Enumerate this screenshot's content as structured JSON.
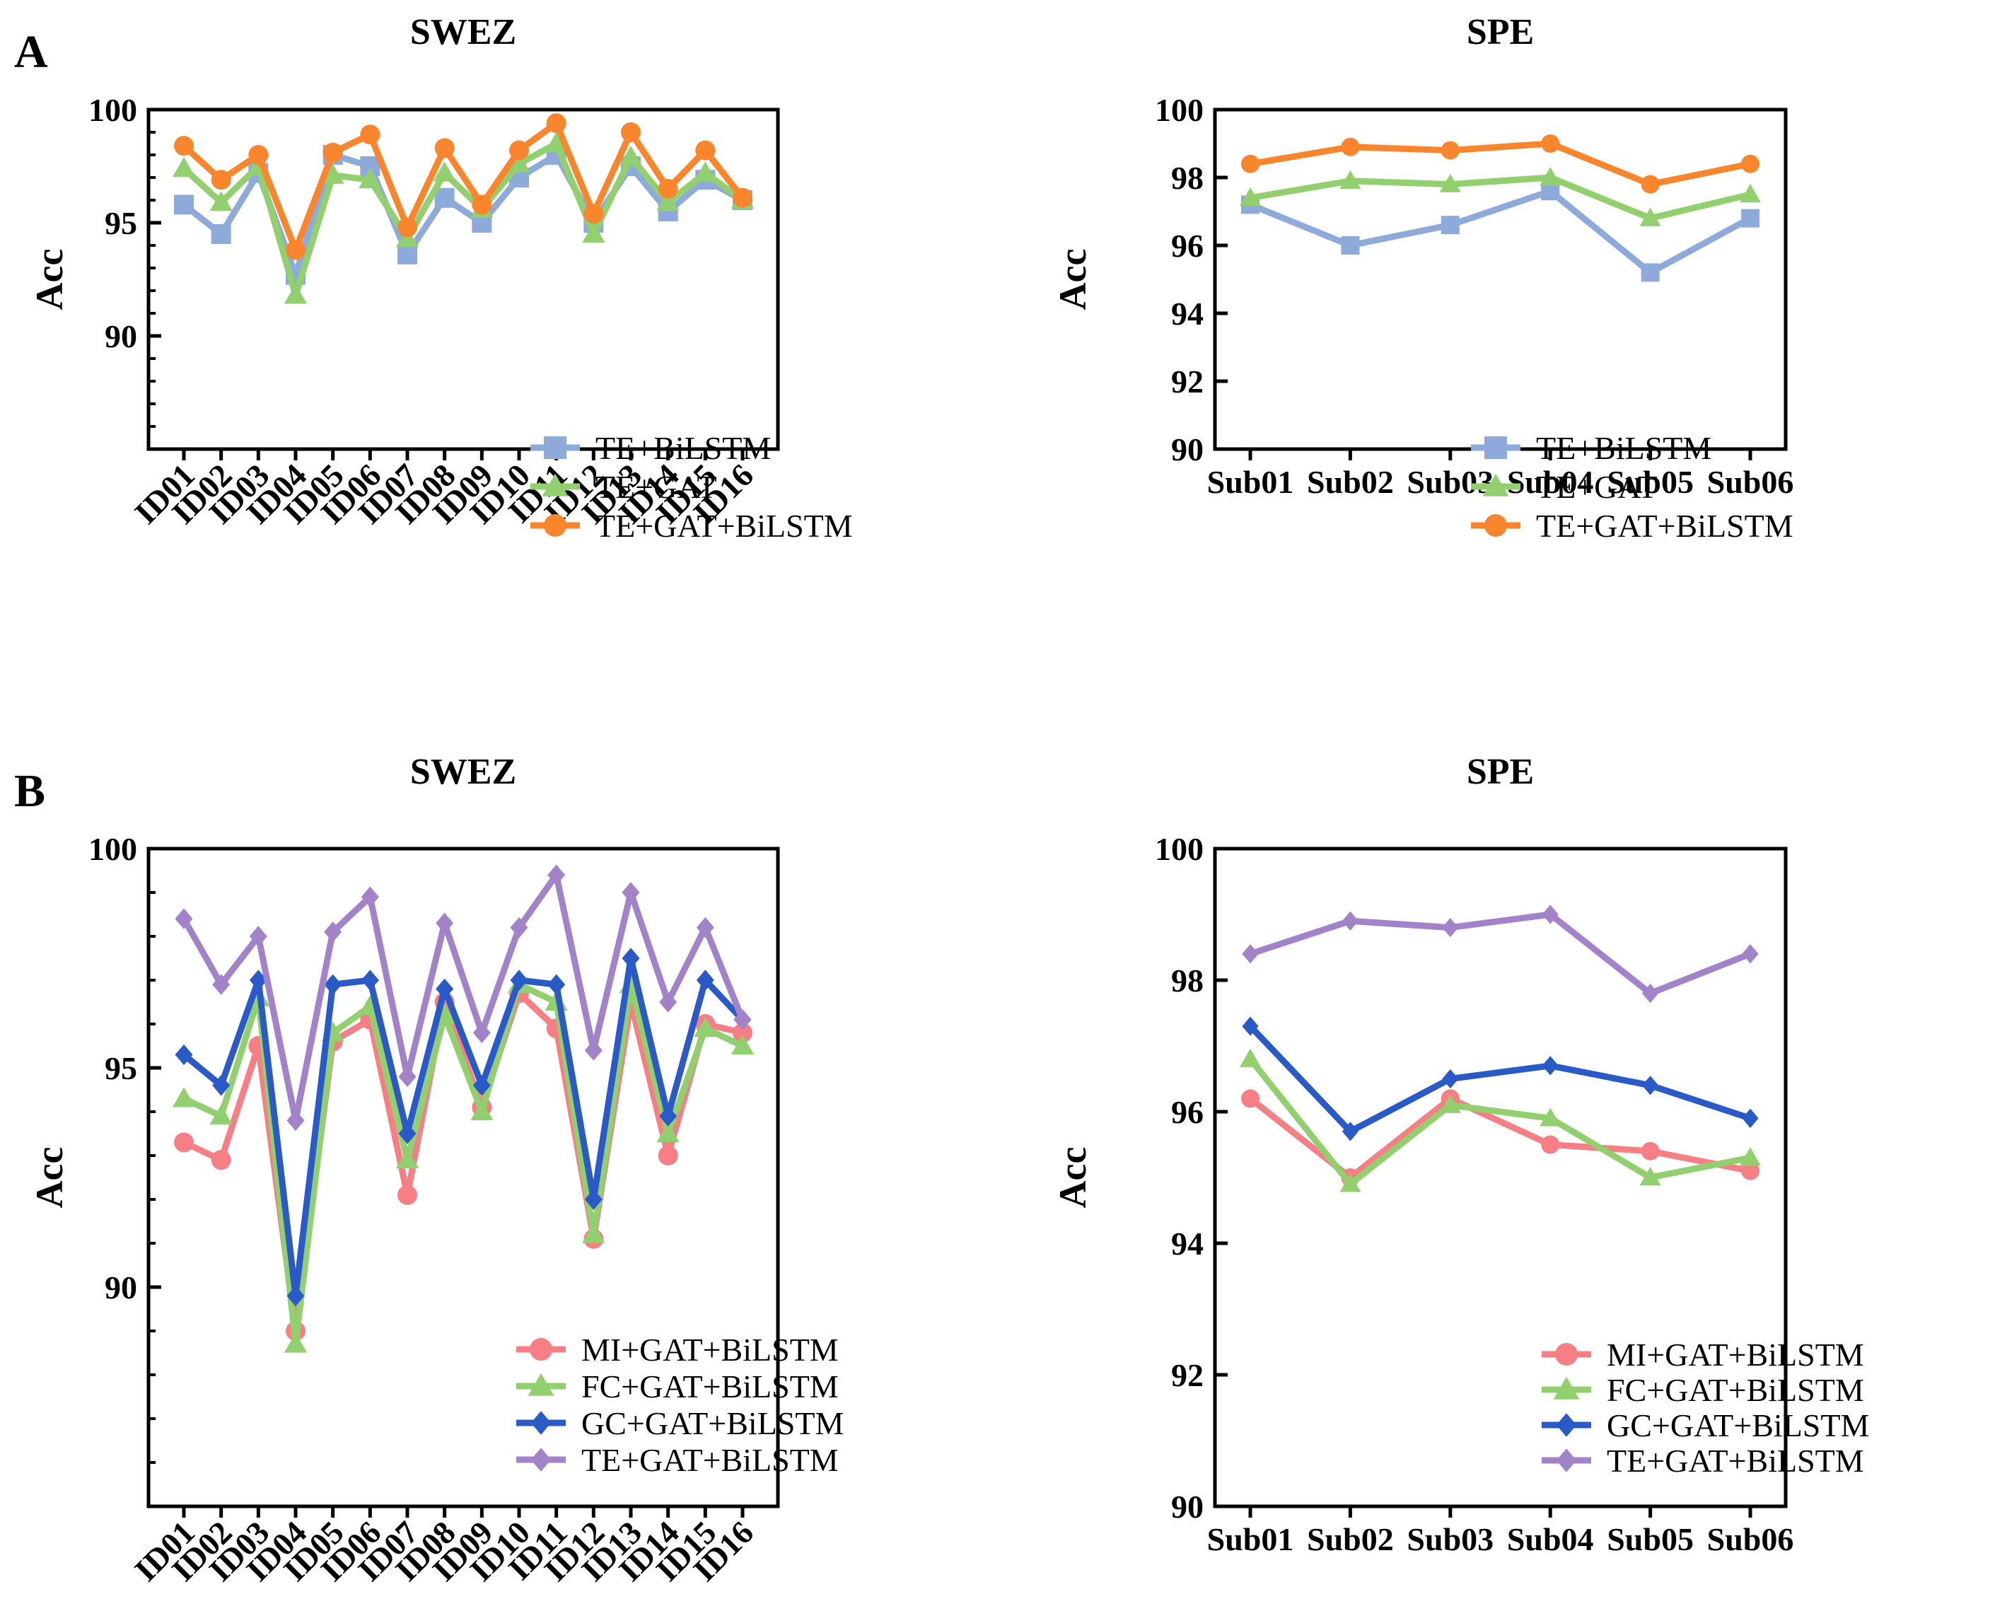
{
  "figure": {
    "panel_letters": [
      "A",
      "B"
    ]
  },
  "chart_data": [
    {
      "id": "A-left",
      "type": "line",
      "title": "SWEZ",
      "xlabel": "",
      "ylabel": "Acc",
      "ylim": [
        85,
        100
      ],
      "yticks": [
        90,
        95,
        100
      ],
      "ytick_labels": [
        "90",
        "95",
        "100"
      ],
      "minor_yticks": true,
      "x_rotated": true,
      "grid": false,
      "legend_position": "bottom-right",
      "categories": [
        "ID01",
        "ID02",
        "ID03",
        "ID04",
        "ID05",
        "ID06",
        "ID07",
        "ID08",
        "ID09",
        "ID10",
        "ID11",
        "ID12",
        "ID13",
        "ID14",
        "ID15",
        "ID16"
      ],
      "series": [
        {
          "name": "TE+BiLSTM",
          "color": "#8eaadb",
          "marker": "square",
          "values": [
            95.8,
            94.5,
            97.2,
            92.7,
            98.0,
            97.5,
            93.6,
            96.1,
            95.0,
            97.0,
            98.0,
            95.0,
            97.5,
            95.5,
            96.9,
            96.0
          ]
        },
        {
          "name": "TE+GAT",
          "color": "#92d06f",
          "marker": "triangle",
          "values": [
            97.4,
            95.9,
            97.5,
            91.8,
            97.1,
            96.9,
            94.3,
            97.2,
            95.6,
            97.6,
            98.5,
            94.5,
            97.9,
            95.9,
            97.2,
            96.0
          ]
        },
        {
          "name": "TE+GAT+BiLSTM",
          "color": "#f9852d",
          "marker": "circle",
          "values": [
            98.4,
            96.9,
            98.0,
            93.8,
            98.1,
            98.9,
            94.8,
            98.3,
            95.8,
            98.2,
            99.4,
            95.4,
            99.0,
            96.5,
            98.2,
            96.1
          ]
        }
      ]
    },
    {
      "id": "A-right",
      "type": "line",
      "title": "SPE",
      "xlabel": "",
      "ylabel": "Acc",
      "ylim": [
        90,
        100
      ],
      "yticks": [
        90,
        92,
        94,
        96,
        98,
        100
      ],
      "ytick_labels": [
        "90",
        "92",
        "94",
        "96",
        "98",
        "100"
      ],
      "minor_yticks": false,
      "x_rotated": false,
      "grid": false,
      "legend_position": "bottom-right",
      "categories": [
        "Sub01",
        "Sub02",
        "Sub03",
        "Sub04",
        "Sub05",
        "Sub06"
      ],
      "series": [
        {
          "name": "TE+BiLSTM",
          "color": "#8eaadb",
          "marker": "square",
          "values": [
            97.2,
            96.0,
            96.6,
            97.6,
            95.2,
            96.8
          ]
        },
        {
          "name": "TE+GAT",
          "color": "#92d06f",
          "marker": "triangle",
          "values": [
            97.4,
            97.9,
            97.8,
            98.0,
            96.8,
            97.5
          ]
        },
        {
          "name": "TE+GAT+BiLSTM",
          "color": "#f9852d",
          "marker": "circle",
          "values": [
            98.4,
            98.9,
            98.8,
            99.0,
            97.8,
            98.4
          ]
        }
      ]
    },
    {
      "id": "B-left",
      "type": "line",
      "title": "SWEZ",
      "xlabel": "",
      "ylabel": "Acc",
      "ylim": [
        85,
        100
      ],
      "yticks": [
        90,
        95,
        100
      ],
      "ytick_labels": [
        "90",
        "95",
        "100"
      ],
      "minor_yticks": true,
      "x_rotated": true,
      "grid": false,
      "legend_position": "bottom-right",
      "categories": [
        "ID01",
        "ID02",
        "ID03",
        "ID04",
        "ID05",
        "ID06",
        "ID07",
        "ID08",
        "ID09",
        "ID10",
        "ID11",
        "ID12",
        "ID13",
        "ID14",
        "ID15",
        "ID16"
      ],
      "series": [
        {
          "name": "MI+GAT+BiLSTM",
          "color": "#f57f85",
          "marker": "circle",
          "values": [
            93.3,
            92.9,
            95.5,
            89.0,
            95.6,
            96.1,
            92.1,
            96.5,
            94.1,
            96.7,
            95.9,
            91.1,
            96.5,
            93.0,
            96.0,
            95.8
          ]
        },
        {
          "name": "FC+GAT+BiLSTM",
          "color": "#92d06f",
          "marker": "triangle",
          "values": [
            94.3,
            93.9,
            96.6,
            88.7,
            95.8,
            96.4,
            92.9,
            96.2,
            94.0,
            96.9,
            96.5,
            91.2,
            96.9,
            93.5,
            95.9,
            95.5
          ]
        },
        {
          "name": "GC+GAT+BiLSTM",
          "color": "#2a5ac8",
          "marker": "diamond",
          "values": [
            95.3,
            94.6,
            97.0,
            89.8,
            96.9,
            97.0,
            93.5,
            96.8,
            94.6,
            97.0,
            96.9,
            92.0,
            97.5,
            93.9,
            97.0,
            96.1
          ]
        },
        {
          "name": "TE+GAT+BiLSTM",
          "color": "#a282c8",
          "marker": "diamond",
          "values": [
            98.4,
            96.9,
            98.0,
            93.8,
            98.1,
            98.9,
            94.8,
            98.3,
            95.8,
            98.2,
            99.4,
            95.4,
            99.0,
            96.5,
            98.2,
            96.1
          ]
        }
      ]
    },
    {
      "id": "B-right",
      "type": "line",
      "title": "SPE",
      "xlabel": "",
      "ylabel": "Acc",
      "ylim": [
        90,
        100
      ],
      "yticks": [
        90,
        92,
        94,
        96,
        98,
        100
      ],
      "ytick_labels": [
        "90",
        "92",
        "94",
        "96",
        "98",
        "100"
      ],
      "minor_yticks": false,
      "x_rotated": false,
      "grid": false,
      "legend_position": "bottom-right",
      "categories": [
        "Sub01",
        "Sub02",
        "Sub03",
        "Sub04",
        "Sub05",
        "Sub06"
      ],
      "series": [
        {
          "name": "MI+GAT+BiLSTM",
          "color": "#f57f85",
          "marker": "circle",
          "values": [
            96.2,
            95.0,
            96.2,
            95.5,
            95.4,
            95.1
          ]
        },
        {
          "name": "FC+GAT+BiLSTM",
          "color": "#92d06f",
          "marker": "triangle",
          "values": [
            96.8,
            94.9,
            96.1,
            95.9,
            95.0,
            95.3
          ]
        },
        {
          "name": "GC+GAT+BiLSTM",
          "color": "#2a5ac8",
          "marker": "diamond",
          "values": [
            97.3,
            95.7,
            96.5,
            96.7,
            96.4,
            95.9
          ]
        },
        {
          "name": "TE+GAT+BiLSTM",
          "color": "#a282c8",
          "marker": "diamond",
          "values": [
            98.4,
            98.9,
            98.8,
            99.0,
            97.8,
            98.4
          ]
        }
      ]
    }
  ]
}
